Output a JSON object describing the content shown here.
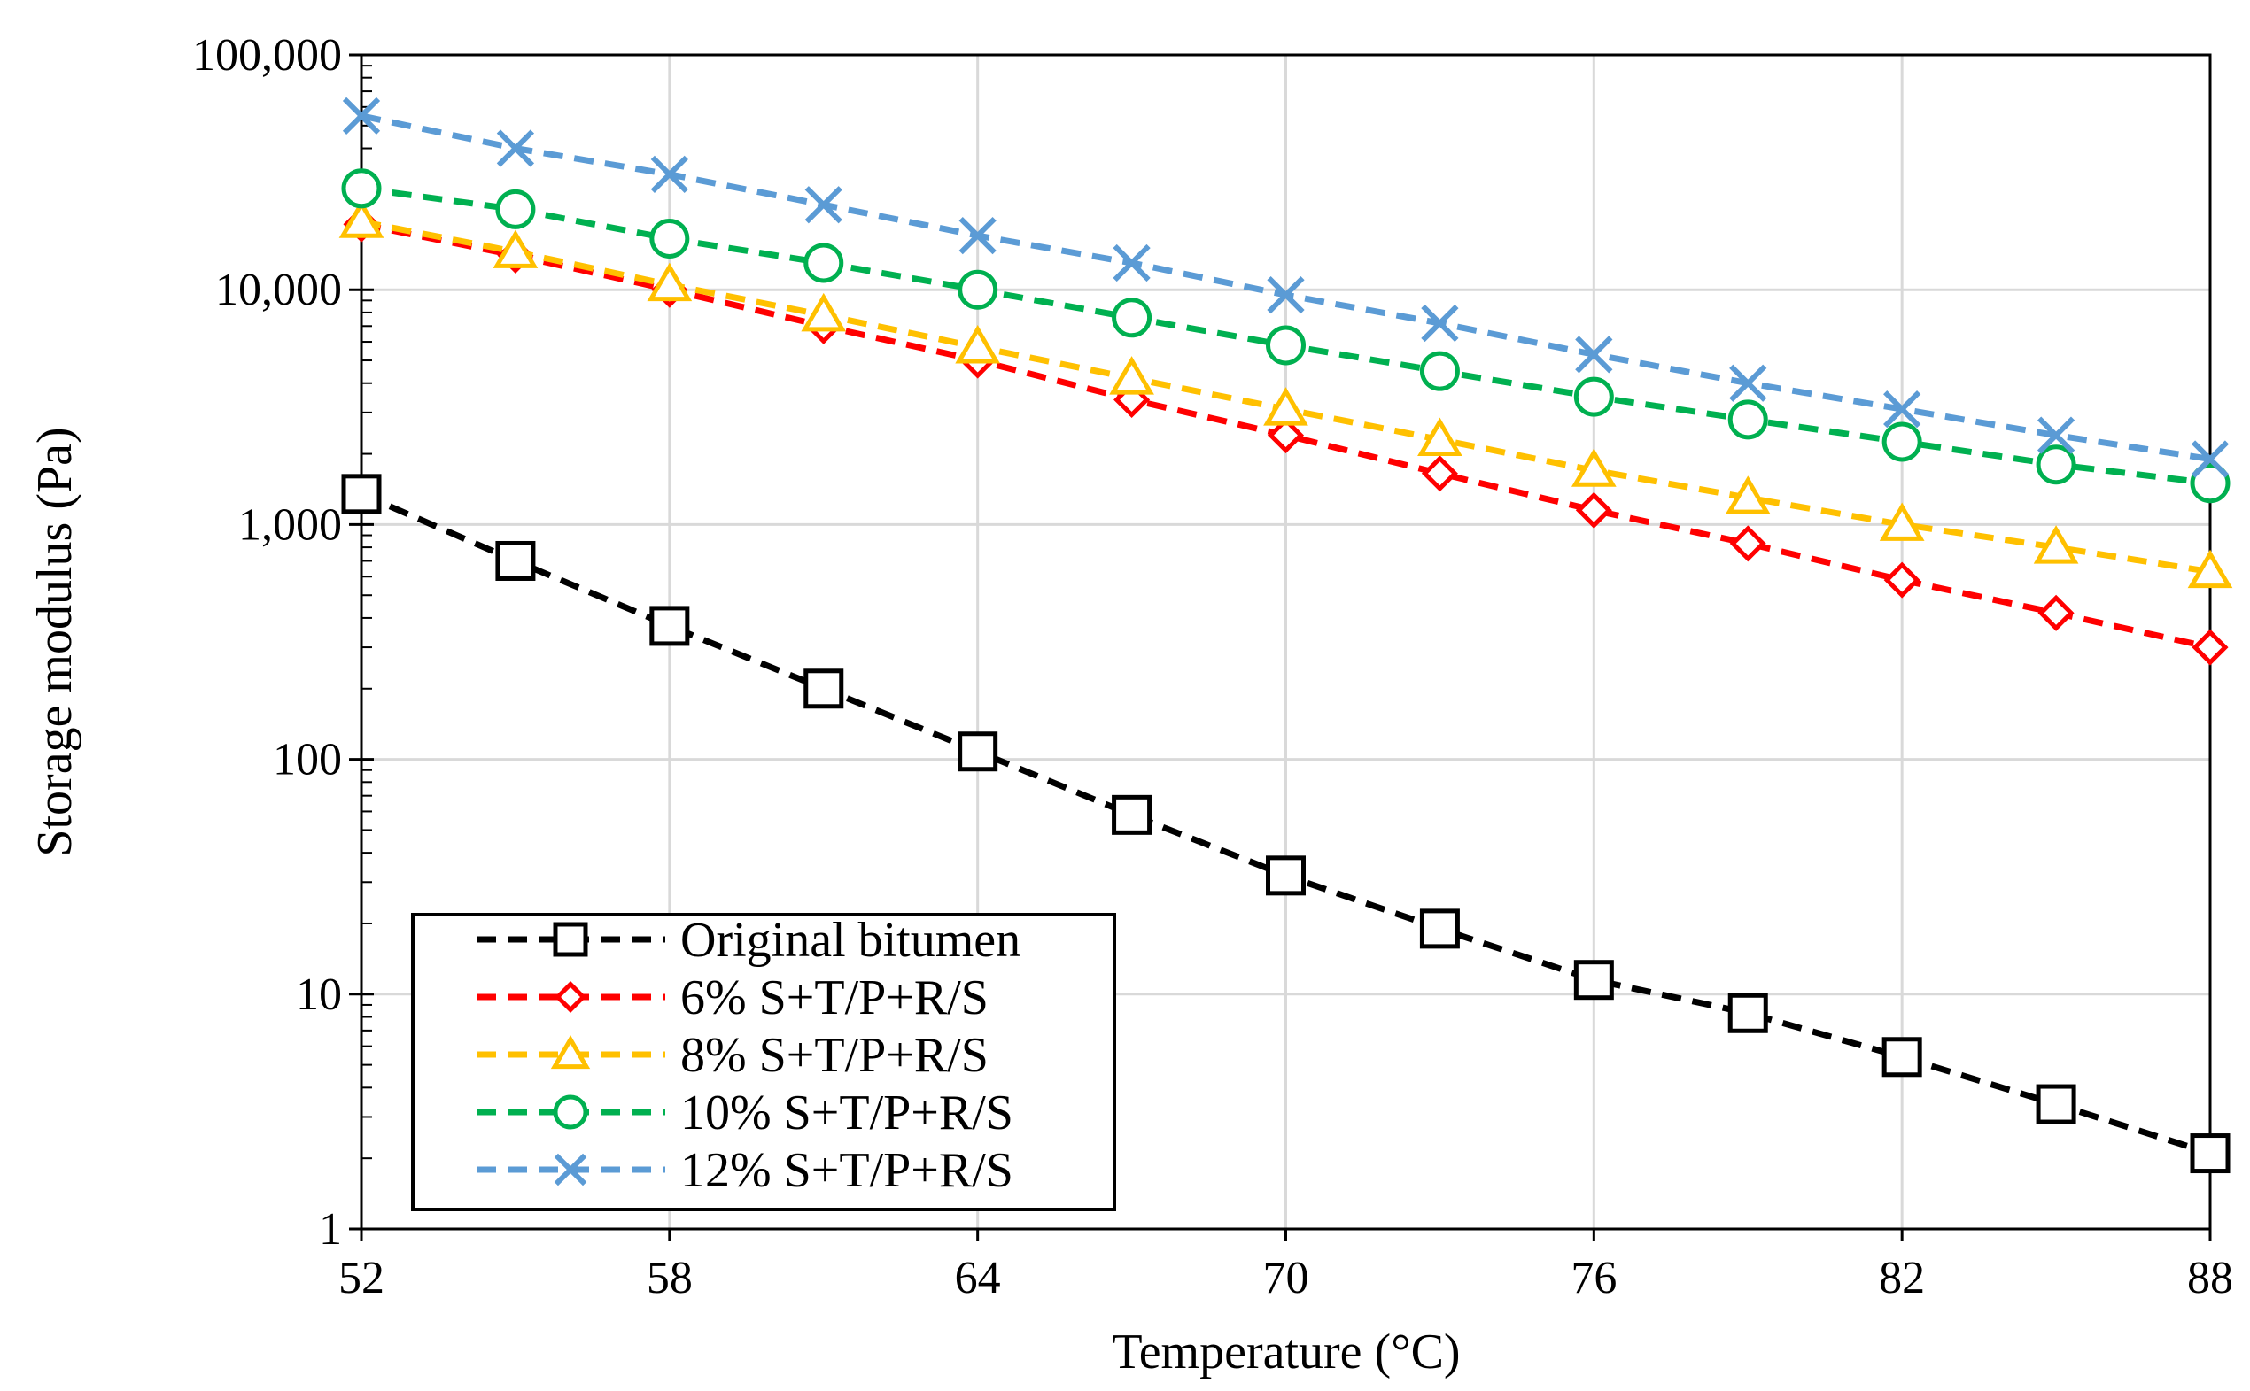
{
  "chart_data": {
    "type": "line",
    "title": "",
    "xlabel": "Temperature (°C)",
    "ylabel": "Storage modulus (Pa)",
    "xlim": [
      52,
      88
    ],
    "ylim": [
      1,
      100000
    ],
    "yscale": "log",
    "grid": true,
    "x_ticks": [
      52,
      58,
      64,
      70,
      76,
      82,
      88
    ],
    "x_tick_labels": [
      "52",
      "58",
      "64",
      "70",
      "76",
      "82",
      "88"
    ],
    "y_ticks": [
      1,
      10,
      100,
      1000,
      10000,
      100000
    ],
    "y_tick_labels": [
      "1",
      "10",
      "100",
      "1,000",
      "10,000",
      "100,000"
    ],
    "legend_position": "bottom-left",
    "x": [
      52,
      55,
      58,
      61,
      64,
      67,
      70,
      73,
      76,
      79,
      82,
      85,
      88
    ],
    "series": [
      {
        "name": "Original bitumen",
        "color": "#000000",
        "marker": "square",
        "values": [
          1350,
          700,
          370,
          200,
          108,
          58,
          32,
          19,
          11.5,
          8.3,
          5.4,
          3.4,
          2.1
        ]
      },
      {
        "name": "6% S+T/P+R/S",
        "color": "#ff0000",
        "marker": "diamond",
        "values": [
          19000,
          14000,
          10000,
          7000,
          5000,
          3400,
          2400,
          1650,
          1150,
          830,
          580,
          420,
          300
        ]
      },
      {
        "name": "8% S+T/P+R/S",
        "color": "#ffc000",
        "marker": "triangle",
        "values": [
          19500,
          14500,
          10500,
          7800,
          5700,
          4200,
          3100,
          2300,
          1700,
          1300,
          1000,
          800,
          630
        ]
      },
      {
        "name": "10% S+T/P+R/S",
        "color": "#00b050",
        "marker": "circle",
        "values": [
          27000,
          22000,
          16500,
          13000,
          10000,
          7600,
          5800,
          4500,
          3500,
          2800,
          2250,
          1800,
          1500
        ]
      },
      {
        "name": "12% S+T/P+R/S",
        "color": "#5b9bd5",
        "marker": "x",
        "values": [
          55000,
          40000,
          31000,
          23000,
          17000,
          13000,
          9500,
          7200,
          5300,
          4000,
          3100,
          2400,
          1900
        ]
      }
    ]
  }
}
